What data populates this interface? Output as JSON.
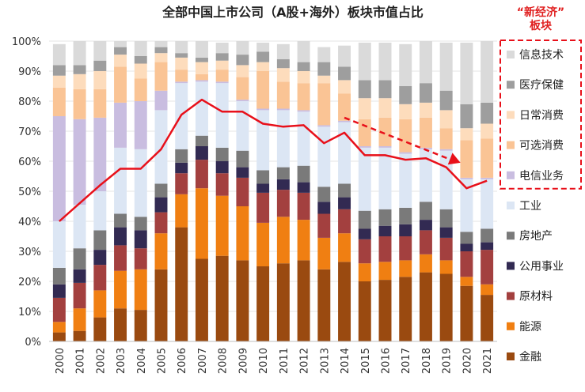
{
  "chart_data": {
    "type": "bar",
    "stacked": true,
    "title": "全部中国上市公司（A股+海外）板块市值占比",
    "categories": [
      "2000",
      "2001",
      "2002",
      "2003",
      "2004",
      "2005",
      "2006",
      "2007",
      "2008",
      "2009",
      "2010",
      "2011",
      "2012",
      "2013",
      "2014",
      "2015",
      "2016",
      "2017",
      "2018",
      "2019",
      "2020",
      "2021"
    ],
    "ylim": [
      0,
      100
    ],
    "yticks": [
      "0%",
      "10%",
      "20%",
      "30%",
      "40%",
      "50%",
      "60%",
      "70%",
      "80%",
      "90%",
      "100%"
    ],
    "legend_group_label": "“新经济”\n板块",
    "series": [
      {
        "name": "金融",
        "color": "#9a4a10",
        "values": [
          3,
          3.5,
          8,
          11,
          10.5,
          24,
          38,
          27.5,
          28.5,
          27,
          25,
          26,
          27,
          24,
          26.5,
          20,
          20.5,
          21.5,
          23,
          22.5,
          18.5,
          15.5
        ]
      },
      {
        "name": "能源",
        "color": "#f07f12",
        "values": [
          3.5,
          7.5,
          9,
          12.5,
          13.5,
          12,
          11,
          23.5,
          20,
          18,
          14.5,
          15.5,
          13.5,
          10.5,
          9.5,
          6,
          6,
          5.5,
          6,
          4.5,
          3,
          3.5
        ]
      },
      {
        "name": "原材料",
        "color": "#a3403f",
        "values": [
          8,
          8.5,
          8.5,
          8.5,
          7,
          7,
          7,
          9.5,
          7.5,
          9.5,
          10,
          9,
          9,
          8,
          8,
          8,
          8.5,
          8,
          8,
          7.5,
          8.5,
          11.5
        ]
      },
      {
        "name": "公用事业",
        "color": "#322a52",
        "values": [
          4.5,
          4.5,
          5,
          6,
          6,
          5,
          3.5,
          4.5,
          4,
          3.5,
          3,
          3.5,
          3.5,
          4,
          4,
          3.5,
          3.5,
          4,
          3.5,
          3.5,
          2.5,
          2.5
        ]
      },
      {
        "name": "房地产",
        "color": "#7a7a7a",
        "values": [
          5.5,
          7,
          6.5,
          4.5,
          4.5,
          4.5,
          4.5,
          3.5,
          4.5,
          5.5,
          4.5,
          4,
          5.5,
          5,
          4.5,
          6,
          5.5,
          5.5,
          6,
          6,
          4,
          4.5
        ]
      },
      {
        "name": "工业",
        "color": "#dce6f4",
        "values": [
          15.5,
          14.5,
          13,
          22,
          22.5,
          24.5,
          22,
          18,
          21.5,
          16.5,
          20,
          19,
          18,
          20,
          20.5,
          21,
          20.5,
          18,
          17.5,
          19.5,
          17.5,
          16.5
        ]
      },
      {
        "name": "电信业务",
        "color": "#c9bde0",
        "values": [
          35,
          28.5,
          24.5,
          15,
          16,
          6.5,
          0.5,
          0.5,
          0.5,
          0.5,
          0.5,
          0.5,
          0.5,
          0.5,
          0.5,
          0.5,
          0.5,
          0.5,
          0.5,
          0.5,
          0.5,
          0.5
        ]
      },
      {
        "name": "可选消费",
        "color": "#fac495",
        "values": [
          9.5,
          10,
          9.5,
          12,
          7.5,
          9.5,
          4,
          2,
          4,
          7.5,
          12.5,
          9,
          9,
          14,
          9,
          9,
          9.5,
          11,
          10,
          7,
          12.5,
          13
        ]
      },
      {
        "name": "日常消费",
        "color": "#fddcbc",
        "values": [
          4,
          5,
          6,
          4,
          5,
          3,
          4,
          4,
          3,
          4,
          3,
          4.5,
          4,
          2.5,
          4.5,
          7,
          6.5,
          5,
          5,
          6,
          4,
          5
        ]
      },
      {
        "name": "医疗保健",
        "color": "#9e9e9e",
        "values": [
          3.5,
          3,
          3.5,
          2.5,
          2.5,
          2,
          1.5,
          1.5,
          2.5,
          3.5,
          3.5,
          3,
          3,
          4.5,
          4.5,
          6,
          6,
          6,
          6.5,
          6.5,
          8,
          7
        ]
      },
      {
        "name": "信息技术",
        "color": "#dadada",
        "values": [
          7,
          8,
          6.5,
          2,
          5,
          2,
          4,
          5.5,
          3.5,
          4.5,
          3,
          5,
          7,
          5,
          7,
          12.5,
          12.5,
          14,
          14,
          16,
          20.5,
          20.5
        ]
      }
    ],
    "line": {
      "name": "“新经济”板块 trend",
      "color": "#e8101a",
      "values": [
        40,
        46,
        52,
        57.5,
        57.5,
        64,
        75.5,
        80.5,
        76.5,
        76.5,
        72.5,
        71.5,
        72,
        66,
        69.5,
        62,
        62,
        60.5,
        61,
        58,
        51,
        53.5
      ]
    }
  }
}
